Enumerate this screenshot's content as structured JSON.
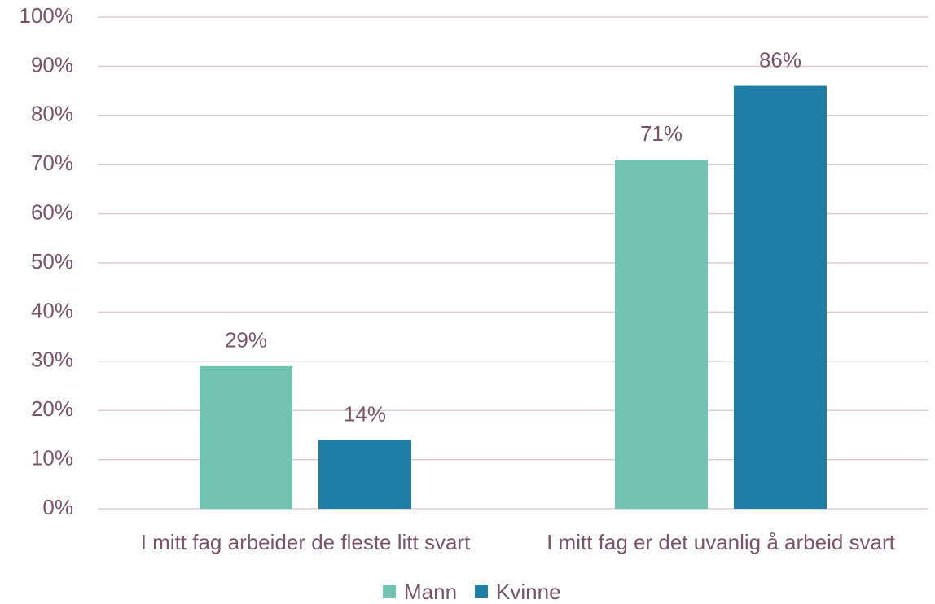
{
  "chart_data": {
    "type": "bar",
    "categories": [
      "I mitt fag arbeider de fleste litt svart",
      "I mitt fag er det uvanlig å arbeid svart"
    ],
    "series": [
      {
        "name": "Mann",
        "color": "#73c3b3",
        "values": [
          29,
          71
        ],
        "value_labels": [
          "29%",
          "71%"
        ]
      },
      {
        "name": "Kvinne",
        "color": "#1f7ea5",
        "values": [
          14,
          86
        ],
        "value_labels": [
          "14%",
          "86%"
        ]
      }
    ],
    "ylim": [
      0,
      100
    ],
    "yticks": [
      {
        "value": 0,
        "label": "0%"
      },
      {
        "value": 10,
        "label": "10%"
      },
      {
        "value": 20,
        "label": "20%"
      },
      {
        "value": 30,
        "label": "30%"
      },
      {
        "value": 40,
        "label": "40%"
      },
      {
        "value": 50,
        "label": "50%"
      },
      {
        "value": 60,
        "label": "60%"
      },
      {
        "value": 70,
        "label": "70%"
      },
      {
        "value": 80,
        "label": "80%"
      },
      {
        "value": 90,
        "label": "90%"
      },
      {
        "value": 100,
        "label": "100%"
      }
    ],
    "grid": true,
    "legend": "bottom"
  }
}
